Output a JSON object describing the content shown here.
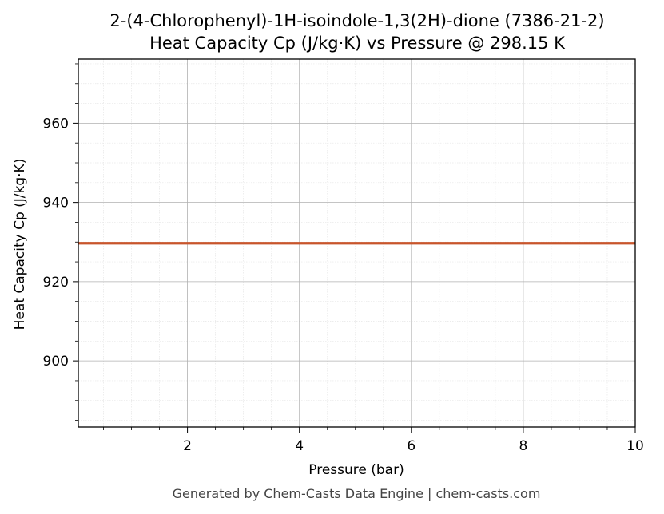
{
  "chart_data": {
    "type": "line",
    "title": "2-(4-Chlorophenyl)-1H-isoindole-1,3(2H)-dione (7386-21-2)",
    "subtitle": "Heat Capacity Cp (J/kg·K) vs Pressure @ 298.15 K",
    "xlabel": "Pressure (bar)",
    "ylabel": "Heat Capacity Cp (J/kg·K)",
    "xlim": [
      0.05,
      10
    ],
    "ylim": [
      883.3,
      976.2
    ],
    "x_ticks": [
      2,
      4,
      6,
      8,
      10
    ],
    "y_ticks": [
      900,
      920,
      940,
      960
    ],
    "x_minor_step": 0.5,
    "y_minor_step": 5,
    "grid": true,
    "series": [
      {
        "color": "#c8552b",
        "x": [
          0.05,
          10
        ],
        "y": [
          929.7,
          929.7
        ]
      }
    ]
  },
  "footer": "Generated by Chem-Casts Data Engine | chem-casts.com"
}
